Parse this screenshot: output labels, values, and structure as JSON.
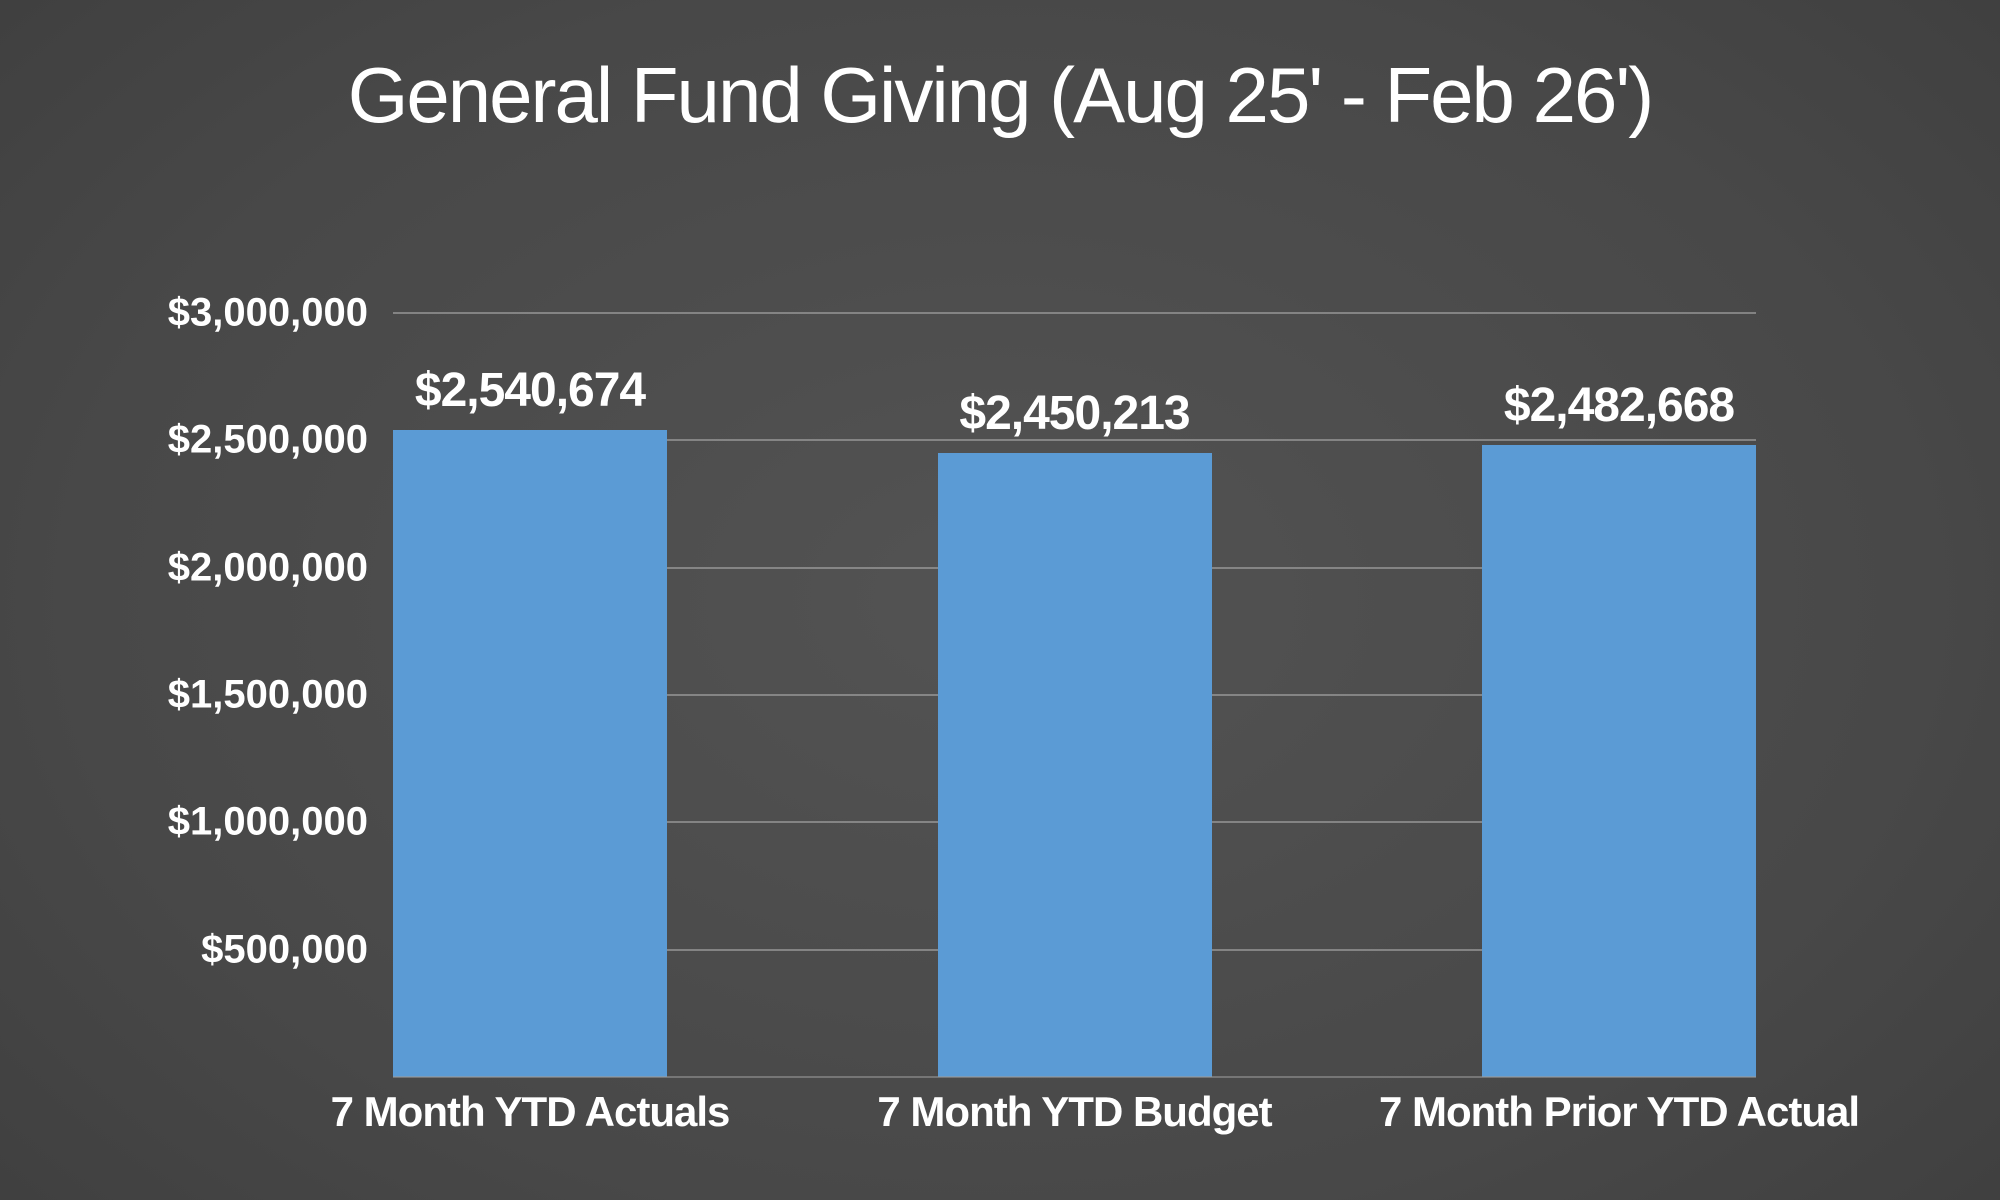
{
  "slide": {
    "title": "General Fund Giving (Aug 25' - Feb 26')"
  },
  "colors": {
    "bar": "#5B9BD5",
    "text": "#FFFFFF",
    "gridline": "#A6A6A6",
    "axis_line": "#9A9A9A",
    "background_center": "#535353",
    "background_edge": "#2D2D2D"
  },
  "chart_data": {
    "type": "bar",
    "title": "General Fund Giving (Aug 25' - Feb 26')",
    "categories": [
      "7 Month YTD Actuals",
      "7 Month YTD Budget",
      "7 Month Prior YTD Actual"
    ],
    "values": [
      2540674,
      2450213,
      2482668
    ],
    "data_labels": [
      "$2,540,674",
      "$2,450,213",
      "$2,482,668"
    ],
    "series": [
      {
        "name": "General Fund Giving",
        "values": [
          2540674,
          2450213,
          2482668
        ]
      }
    ],
    "xlabel": "",
    "ylabel": "",
    "ylim": [
      0,
      3000000
    ],
    "ytick_interval": 500000,
    "yticks": [
      {
        "value": 500000,
        "label": "$500,000"
      },
      {
        "value": 1000000,
        "label": "$1,000,000"
      },
      {
        "value": 1500000,
        "label": "$1,500,000"
      },
      {
        "value": 2000000,
        "label": "$2,000,000"
      },
      {
        "value": 2500000,
        "label": "$2,500,000"
      },
      {
        "value": 3000000,
        "label": "$3,000,000"
      }
    ],
    "grid": true,
    "legend": false,
    "bar_gap_layout": "space-between"
  }
}
